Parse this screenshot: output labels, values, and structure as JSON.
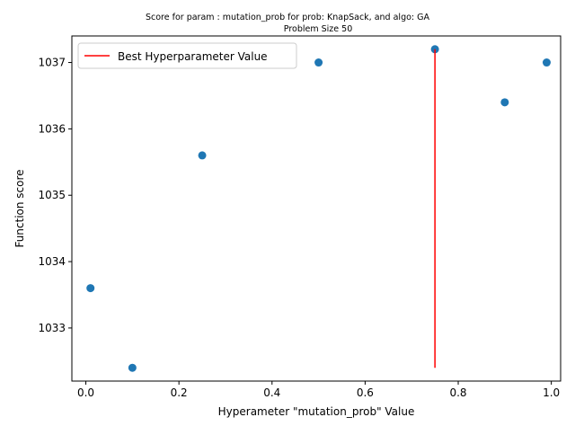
{
  "chart_data": {
    "type": "scatter",
    "title_line1": "Score for param : mutation_prob for prob: KnapSack, and algo: GA",
    "title_line2": "Problem Size 50",
    "xlabel": "Hyperameter \"mutation_prob\" Value",
    "ylabel": "Function score",
    "xlim": [
      -0.03,
      1.02
    ],
    "ylim": [
      1032.2,
      1037.4
    ],
    "xticks": [
      0.0,
      0.2,
      0.4,
      0.6,
      0.8,
      1.0
    ],
    "xtick_labels": [
      "0.0",
      "0.2",
      "0.4",
      "0.6",
      "0.8",
      "1.0"
    ],
    "yticks": [
      1033,
      1034,
      1035,
      1036,
      1037
    ],
    "ytick_labels": [
      "1033",
      "1034",
      "1035",
      "1036",
      "1037"
    ],
    "grid": false,
    "legend_position": "top-left",
    "series": [
      {
        "type": "scatter",
        "color": "#1f77b4",
        "points": [
          {
            "x": 0.01,
            "y": 1033.6
          },
          {
            "x": 0.1,
            "y": 1032.4
          },
          {
            "x": 0.25,
            "y": 1035.6
          },
          {
            "x": 0.5,
            "y": 1037.0
          },
          {
            "x": 0.75,
            "y": 1037.2
          },
          {
            "x": 0.9,
            "y": 1036.4
          },
          {
            "x": 0.99,
            "y": 1037.0
          }
        ]
      },
      {
        "type": "vline",
        "name": "Best Hyperparameter Value",
        "color": "#ff0000",
        "x": 0.75,
        "y_from": 1032.4,
        "y_to": 1037.2
      }
    ]
  }
}
